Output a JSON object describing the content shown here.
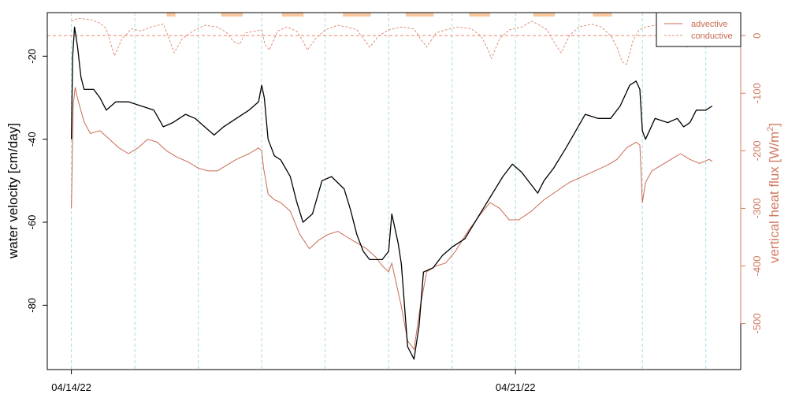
{
  "chart_data": {
    "type": "line",
    "ylabel_left": "water velocity [cm/day]",
    "ylabel_right": "vertical heat flux [W/m²]",
    "ylabel_right_base": "vertical heat flux [W/m",
    "ylabel_right_sup": "2",
    "ylabel_right_close": "]",
    "x_tick_labels": [
      {
        "day": 0,
        "label": "04/14/22"
      },
      {
        "day": 7,
        "label": "04/21/22"
      }
    ],
    "xlim_days": [
      -0.38,
      10.55
    ],
    "ylim_left": [
      -95.5,
      -9.5
    ],
    "yticks_left": [
      -20,
      -40,
      -60,
      -80
    ],
    "ylim_right": [
      -580,
      40
    ],
    "yticks_right": [
      0,
      -100,
      -200,
      -300,
      -400,
      -500
    ],
    "grid_vlines_days": [
      0,
      1,
      2,
      3,
      4,
      5,
      6,
      7,
      8,
      9,
      10
    ],
    "hline_right_value": 0,
    "daylight_bars": [
      [
        1.5,
        1.64
      ],
      [
        2.36,
        2.7
      ],
      [
        3.32,
        3.66
      ],
      [
        4.28,
        4.72
      ],
      [
        5.27,
        5.71
      ],
      [
        6.27,
        6.6
      ],
      [
        7.28,
        7.62
      ],
      [
        8.22,
        8.52
      ]
    ],
    "legend": {
      "position": "top-right",
      "entries": [
        {
          "label": "advective",
          "style": "solid"
        },
        {
          "label": "conductive",
          "style": "dashed"
        }
      ]
    },
    "series": [
      {
        "name": "water velocity",
        "axis": "left",
        "color": "#000000",
        "points": [
          [
            0.0,
            -40
          ],
          [
            0.02,
            -20
          ],
          [
            0.05,
            -13
          ],
          [
            0.1,
            -18
          ],
          [
            0.15,
            -25
          ],
          [
            0.2,
            -28
          ],
          [
            0.35,
            -28
          ],
          [
            0.45,
            -30
          ],
          [
            0.55,
            -33
          ],
          [
            0.7,
            -31
          ],
          [
            0.9,
            -31
          ],
          [
            1.1,
            -32
          ],
          [
            1.3,
            -33
          ],
          [
            1.45,
            -37
          ],
          [
            1.6,
            -36
          ],
          [
            1.8,
            -34
          ],
          [
            1.95,
            -35
          ],
          [
            2.1,
            -37
          ],
          [
            2.25,
            -39
          ],
          [
            2.4,
            -37
          ],
          [
            2.6,
            -35
          ],
          [
            2.8,
            -33
          ],
          [
            2.95,
            -31
          ],
          [
            3.0,
            -27
          ],
          [
            3.04,
            -30
          ],
          [
            3.1,
            -40
          ],
          [
            3.2,
            -44
          ],
          [
            3.3,
            -45
          ],
          [
            3.45,
            -49
          ],
          [
            3.55,
            -55
          ],
          [
            3.65,
            -60
          ],
          [
            3.8,
            -58
          ],
          [
            3.95,
            -50
          ],
          [
            4.1,
            -49
          ],
          [
            4.3,
            -52
          ],
          [
            4.4,
            -57
          ],
          [
            4.5,
            -63
          ],
          [
            4.6,
            -67
          ],
          [
            4.7,
            -69
          ],
          [
            4.9,
            -69
          ],
          [
            5.0,
            -67
          ],
          [
            5.05,
            -58
          ],
          [
            5.15,
            -65
          ],
          [
            5.2,
            -70
          ],
          [
            5.3,
            -90
          ],
          [
            5.4,
            -93
          ],
          [
            5.48,
            -85
          ],
          [
            5.55,
            -72
          ],
          [
            5.7,
            -71
          ],
          [
            5.85,
            -68
          ],
          [
            6.0,
            -66
          ],
          [
            6.2,
            -64
          ],
          [
            6.4,
            -59
          ],
          [
            6.6,
            -54
          ],
          [
            6.8,
            -49
          ],
          [
            6.95,
            -46
          ],
          [
            7.1,
            -48
          ],
          [
            7.25,
            -51
          ],
          [
            7.35,
            -53
          ],
          [
            7.45,
            -50
          ],
          [
            7.6,
            -47
          ],
          [
            7.8,
            -42
          ],
          [
            7.95,
            -38
          ],
          [
            8.1,
            -34
          ],
          [
            8.3,
            -35
          ],
          [
            8.5,
            -35
          ],
          [
            8.65,
            -32
          ],
          [
            8.8,
            -27
          ],
          [
            8.9,
            -26
          ],
          [
            8.96,
            -28
          ],
          [
            9.0,
            -38
          ],
          [
            9.05,
            -40
          ],
          [
            9.2,
            -35
          ],
          [
            9.4,
            -36
          ],
          [
            9.55,
            -35
          ],
          [
            9.65,
            -37
          ],
          [
            9.75,
            -36
          ],
          [
            9.85,
            -33
          ],
          [
            10.0,
            -33
          ],
          [
            10.1,
            -32
          ]
        ]
      },
      {
        "name": "advective",
        "axis": "right",
        "color": "#c96a52",
        "points": [
          [
            0.0,
            -300
          ],
          [
            0.03,
            -120
          ],
          [
            0.06,
            -90
          ],
          [
            0.1,
            -110
          ],
          [
            0.2,
            -150
          ],
          [
            0.3,
            -170
          ],
          [
            0.45,
            -165
          ],
          [
            0.6,
            -180
          ],
          [
            0.75,
            -195
          ],
          [
            0.9,
            -205
          ],
          [
            1.05,
            -195
          ],
          [
            1.2,
            -180
          ],
          [
            1.35,
            -185
          ],
          [
            1.5,
            -200
          ],
          [
            1.65,
            -210
          ],
          [
            1.85,
            -220
          ],
          [
            2.0,
            -230
          ],
          [
            2.15,
            -235
          ],
          [
            2.3,
            -235
          ],
          [
            2.45,
            -225
          ],
          [
            2.6,
            -215
          ],
          [
            2.8,
            -205
          ],
          [
            2.95,
            -195
          ],
          [
            3.0,
            -200
          ],
          [
            3.03,
            -230
          ],
          [
            3.1,
            -275
          ],
          [
            3.2,
            -285
          ],
          [
            3.3,
            -290
          ],
          [
            3.45,
            -305
          ],
          [
            3.6,
            -345
          ],
          [
            3.75,
            -370
          ],
          [
            3.9,
            -355
          ],
          [
            4.05,
            -345
          ],
          [
            4.2,
            -340
          ],
          [
            4.35,
            -350
          ],
          [
            4.5,
            -360
          ],
          [
            4.65,
            -370
          ],
          [
            4.8,
            -385
          ],
          [
            4.9,
            -400
          ],
          [
            5.0,
            -410
          ],
          [
            5.05,
            -395
          ],
          [
            5.1,
            -420
          ],
          [
            5.2,
            -470
          ],
          [
            5.3,
            -530
          ],
          [
            5.4,
            -545
          ],
          [
            5.5,
            -470
          ],
          [
            5.6,
            -410
          ],
          [
            5.75,
            -400
          ],
          [
            5.9,
            -395
          ],
          [
            6.05,
            -375
          ],
          [
            6.25,
            -340
          ],
          [
            6.45,
            -310
          ],
          [
            6.6,
            -290
          ],
          [
            6.75,
            -300
          ],
          [
            6.9,
            -320
          ],
          [
            7.05,
            -320
          ],
          [
            7.25,
            -305
          ],
          [
            7.45,
            -285
          ],
          [
            7.65,
            -270
          ],
          [
            7.85,
            -255
          ],
          [
            8.05,
            -245
          ],
          [
            8.25,
            -235
          ],
          [
            8.45,
            -225
          ],
          [
            8.6,
            -215
          ],
          [
            8.75,
            -195
          ],
          [
            8.9,
            -185
          ],
          [
            8.96,
            -190
          ],
          [
            9.0,
            -290
          ],
          [
            9.05,
            -255
          ],
          [
            9.15,
            -235
          ],
          [
            9.3,
            -225
          ],
          [
            9.45,
            -215
          ],
          [
            9.6,
            -205
          ],
          [
            9.75,
            -215
          ],
          [
            9.9,
            -222
          ],
          [
            10.05,
            -215
          ],
          [
            10.1,
            -218
          ]
        ]
      },
      {
        "name": "conductive",
        "axis": "right",
        "color": "#e0907a",
        "dashed": true,
        "points": [
          [
            0.0,
            25
          ],
          [
            0.1,
            30
          ],
          [
            0.3,
            28
          ],
          [
            0.45,
            22
          ],
          [
            0.55,
            12
          ],
          [
            0.68,
            -35
          ],
          [
            0.8,
            -5
          ],
          [
            0.95,
            12
          ],
          [
            1.1,
            8
          ],
          [
            1.25,
            15
          ],
          [
            1.45,
            20
          ],
          [
            1.55,
            -8
          ],
          [
            1.62,
            -30
          ],
          [
            1.75,
            -5
          ],
          [
            1.95,
            10
          ],
          [
            2.1,
            18
          ],
          [
            2.3,
            15
          ],
          [
            2.45,
            5
          ],
          [
            2.55,
            -10
          ],
          [
            2.65,
            -15
          ],
          [
            2.75,
            5
          ],
          [
            2.9,
            8
          ],
          [
            3.0,
            10
          ],
          [
            3.05,
            -15
          ],
          [
            3.12,
            -25
          ],
          [
            3.25,
            8
          ],
          [
            3.4,
            15
          ],
          [
            3.55,
            8
          ],
          [
            3.65,
            -10
          ],
          [
            3.72,
            -25
          ],
          [
            3.85,
            -5
          ],
          [
            4.0,
            10
          ],
          [
            4.2,
            18
          ],
          [
            4.35,
            15
          ],
          [
            4.5,
            10
          ],
          [
            4.6,
            -5
          ],
          [
            4.7,
            -20
          ],
          [
            4.85,
            0
          ],
          [
            5.0,
            10
          ],
          [
            5.2,
            15
          ],
          [
            5.4,
            12
          ],
          [
            5.5,
            -5
          ],
          [
            5.6,
            -20
          ],
          [
            5.75,
            5
          ],
          [
            5.9,
            10
          ],
          [
            6.1,
            15
          ],
          [
            6.3,
            12
          ],
          [
            6.45,
            0
          ],
          [
            6.55,
            -20
          ],
          [
            6.62,
            -40
          ],
          [
            6.75,
            -5
          ],
          [
            6.9,
            10
          ],
          [
            7.1,
            15
          ],
          [
            7.25,
            25
          ],
          [
            7.35,
            20
          ],
          [
            7.5,
            10
          ],
          [
            7.6,
            -10
          ],
          [
            7.72,
            -30
          ],
          [
            7.85,
            0
          ],
          [
            8.0,
            15
          ],
          [
            8.2,
            20
          ],
          [
            8.35,
            15
          ],
          [
            8.5,
            0
          ],
          [
            8.6,
            -20
          ],
          [
            8.68,
            -45
          ],
          [
            8.75,
            -50
          ],
          [
            8.85,
            -10
          ],
          [
            8.95,
            10
          ],
          [
            9.05,
            15
          ],
          [
            9.2,
            18
          ],
          [
            9.4,
            15
          ],
          [
            9.5,
            5
          ],
          [
            9.6,
            -10
          ],
          [
            9.7,
            -20
          ],
          [
            9.8,
            -5
          ],
          [
            9.9,
            0
          ],
          [
            10.0,
            -15
          ],
          [
            10.1,
            -5
          ]
        ]
      }
    ]
  }
}
